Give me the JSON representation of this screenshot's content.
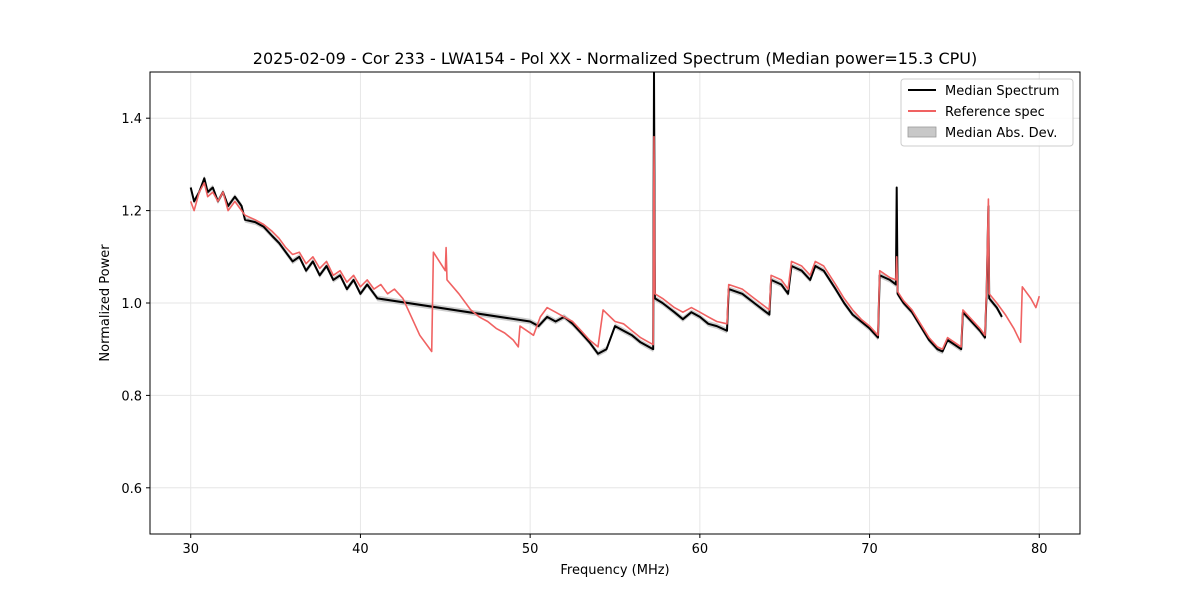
{
  "chart_data": {
    "type": "line",
    "title": "2025-02-09 - Cor 233 - LWA154 - Pol XX - Normalized Spectrum (Median power=15.3 CPU)",
    "xlabel": "Frequency (MHz)",
    "ylabel": "Normalized Power",
    "xlim": [
      27.6,
      82.4
    ],
    "ylim": [
      0.5,
      1.5
    ],
    "xticks": [
      30,
      40,
      50,
      60,
      70,
      80
    ],
    "yticks": [
      0.6,
      0.8,
      1.0,
      1.2,
      1.4
    ],
    "ytick_labels": [
      "0.6",
      "0.8",
      "1.0",
      "1.2",
      "1.4"
    ],
    "grid": true,
    "legend_position": "top-right",
    "series": [
      {
        "name": "Median Spectrum",
        "color": "#000000",
        "kind": "line",
        "points": [
          [
            30.0,
            1.25
          ],
          [
            30.2,
            1.22
          ],
          [
            30.5,
            1.24
          ],
          [
            30.8,
            1.27
          ],
          [
            31.0,
            1.24
          ],
          [
            31.3,
            1.25
          ],
          [
            31.6,
            1.22
          ],
          [
            31.9,
            1.24
          ],
          [
            32.2,
            1.21
          ],
          [
            32.6,
            1.23
          ],
          [
            33.0,
            1.21
          ],
          [
            33.2,
            1.18
          ],
          [
            33.8,
            1.175
          ],
          [
            34.3,
            1.165
          ],
          [
            34.8,
            1.145
          ],
          [
            35.2,
            1.13
          ],
          [
            35.6,
            1.11
          ],
          [
            36.0,
            1.09
          ],
          [
            36.4,
            1.1
          ],
          [
            36.8,
            1.07
          ],
          [
            37.2,
            1.09
          ],
          [
            37.6,
            1.06
          ],
          [
            38.0,
            1.08
          ],
          [
            38.4,
            1.05
          ],
          [
            38.8,
            1.06
          ],
          [
            39.2,
            1.03
          ],
          [
            39.6,
            1.05
          ],
          [
            40.0,
            1.02
          ],
          [
            40.4,
            1.04
          ],
          [
            40.8,
            1.02
          ],
          [
            41.0,
            1.01
          ],
          [
            50.0,
            0.96
          ],
          [
            50.5,
            0.95
          ],
          [
            51.0,
            0.97
          ],
          [
            51.5,
            0.96
          ],
          [
            52.0,
            0.97
          ],
          [
            52.5,
            0.955
          ],
          [
            53.0,
            0.935
          ],
          [
            53.5,
            0.915
          ],
          [
            54.0,
            0.89
          ],
          [
            54.5,
            0.9
          ],
          [
            55.0,
            0.95
          ],
          [
            55.5,
            0.94
          ],
          [
            56.0,
            0.93
          ],
          [
            56.5,
            0.915
          ],
          [
            57.0,
            0.905
          ],
          [
            57.25,
            0.9
          ],
          [
            57.3,
            1.5
          ],
          [
            57.35,
            1.01
          ],
          [
            57.8,
            1.0
          ],
          [
            58.5,
            0.98
          ],
          [
            59.0,
            0.965
          ],
          [
            59.5,
            0.98
          ],
          [
            60.0,
            0.97
          ],
          [
            60.5,
            0.955
          ],
          [
            61.0,
            0.95
          ],
          [
            61.6,
            0.94
          ],
          [
            61.7,
            1.03
          ],
          [
            62.5,
            1.02
          ],
          [
            63.2,
            1.0
          ],
          [
            64.1,
            0.975
          ],
          [
            64.2,
            1.05
          ],
          [
            64.8,
            1.04
          ],
          [
            65.2,
            1.02
          ],
          [
            65.4,
            1.08
          ],
          [
            66.0,
            1.07
          ],
          [
            66.5,
            1.05
          ],
          [
            66.8,
            1.08
          ],
          [
            67.3,
            1.07
          ],
          [
            68.0,
            1.03
          ],
          [
            68.5,
            1.0
          ],
          [
            69.0,
            0.975
          ],
          [
            69.5,
            0.96
          ],
          [
            70.0,
            0.945
          ],
          [
            70.5,
            0.925
          ],
          [
            70.6,
            1.06
          ],
          [
            71.2,
            1.05
          ],
          [
            71.55,
            1.04
          ],
          [
            71.6,
            1.25
          ],
          [
            71.65,
            1.02
          ],
          [
            72.0,
            1.0
          ],
          [
            72.5,
            0.98
          ],
          [
            73.0,
            0.95
          ],
          [
            73.5,
            0.92
          ],
          [
            74.0,
            0.9
          ],
          [
            74.3,
            0.895
          ],
          [
            74.6,
            0.92
          ],
          [
            75.0,
            0.91
          ],
          [
            75.4,
            0.9
          ],
          [
            75.5,
            0.98
          ],
          [
            76.0,
            0.96
          ],
          [
            76.5,
            0.94
          ],
          [
            76.8,
            0.925
          ],
          [
            76.9,
            1.03
          ],
          [
            77.0,
            1.21
          ],
          [
            77.05,
            1.01
          ],
          [
            77.5,
            0.99
          ],
          [
            77.8,
            0.97
          ]
        ]
      },
      {
        "name": "Reference spec",
        "color": "#f06262",
        "kind": "line",
        "points": [
          [
            30.0,
            1.22
          ],
          [
            30.2,
            1.2
          ],
          [
            30.5,
            1.24
          ],
          [
            30.8,
            1.26
          ],
          [
            31.0,
            1.23
          ],
          [
            31.3,
            1.24
          ],
          [
            31.6,
            1.22
          ],
          [
            31.9,
            1.24
          ],
          [
            32.2,
            1.2
          ],
          [
            32.6,
            1.22
          ],
          [
            33.0,
            1.2
          ],
          [
            33.2,
            1.19
          ],
          [
            33.8,
            1.18
          ],
          [
            34.3,
            1.17
          ],
          [
            34.8,
            1.155
          ],
          [
            35.2,
            1.14
          ],
          [
            35.6,
            1.12
          ],
          [
            36.0,
            1.105
          ],
          [
            36.4,
            1.11
          ],
          [
            36.8,
            1.085
          ],
          [
            37.2,
            1.1
          ],
          [
            37.6,
            1.075
          ],
          [
            38.0,
            1.09
          ],
          [
            38.4,
            1.06
          ],
          [
            38.8,
            1.07
          ],
          [
            39.2,
            1.045
          ],
          [
            39.6,
            1.06
          ],
          [
            40.0,
            1.035
          ],
          [
            40.4,
            1.05
          ],
          [
            40.8,
            1.03
          ],
          [
            41.2,
            1.04
          ],
          [
            41.6,
            1.02
          ],
          [
            42.0,
            1.03
          ],
          [
            42.5,
            1.01
          ],
          [
            43.0,
            0.97
          ],
          [
            43.5,
            0.93
          ],
          [
            44.2,
            0.895
          ],
          [
            44.3,
            1.11
          ],
          [
            45.0,
            1.07
          ],
          [
            45.05,
            1.12
          ],
          [
            45.1,
            1.05
          ],
          [
            45.8,
            1.02
          ],
          [
            46.5,
            0.985
          ],
          [
            47.0,
            0.97
          ],
          [
            47.5,
            0.96
          ],
          [
            48.0,
            0.945
          ],
          [
            48.5,
            0.935
          ],
          [
            49.0,
            0.92
          ],
          [
            49.3,
            0.905
          ],
          [
            49.4,
            0.95
          ],
          [
            49.8,
            0.94
          ],
          [
            50.2,
            0.93
          ],
          [
            50.6,
            0.97
          ],
          [
            51.0,
            0.99
          ],
          [
            51.5,
            0.98
          ],
          [
            52.0,
            0.97
          ],
          [
            52.5,
            0.96
          ],
          [
            53.0,
            0.94
          ],
          [
            53.5,
            0.92
          ],
          [
            54.0,
            0.905
          ],
          [
            54.3,
            0.985
          ],
          [
            55.0,
            0.96
          ],
          [
            55.5,
            0.955
          ],
          [
            56.0,
            0.94
          ],
          [
            56.5,
            0.925
          ],
          [
            57.0,
            0.915
          ],
          [
            57.25,
            0.91
          ],
          [
            57.3,
            1.36
          ],
          [
            57.35,
            1.02
          ],
          [
            57.8,
            1.01
          ],
          [
            58.5,
            0.99
          ],
          [
            59.0,
            0.98
          ],
          [
            59.5,
            0.99
          ],
          [
            60.0,
            0.98
          ],
          [
            60.5,
            0.97
          ],
          [
            61.0,
            0.96
          ],
          [
            61.6,
            0.955
          ],
          [
            61.7,
            1.04
          ],
          [
            62.5,
            1.03
          ],
          [
            63.2,
            1.01
          ],
          [
            64.1,
            0.985
          ],
          [
            64.2,
            1.06
          ],
          [
            64.8,
            1.05
          ],
          [
            65.2,
            1.03
          ],
          [
            65.4,
            1.09
          ],
          [
            66.0,
            1.08
          ],
          [
            66.5,
            1.06
          ],
          [
            66.8,
            1.09
          ],
          [
            67.3,
            1.08
          ],
          [
            68.0,
            1.04
          ],
          [
            68.5,
            1.01
          ],
          [
            69.0,
            0.985
          ],
          [
            69.5,
            0.965
          ],
          [
            70.0,
            0.95
          ],
          [
            70.5,
            0.93
          ],
          [
            70.6,
            1.07
          ],
          [
            71.2,
            1.055
          ],
          [
            71.55,
            1.05
          ],
          [
            71.6,
            1.1
          ],
          [
            71.65,
            1.025
          ],
          [
            72.0,
            1.005
          ],
          [
            72.5,
            0.985
          ],
          [
            73.0,
            0.955
          ],
          [
            73.5,
            0.925
          ],
          [
            74.0,
            0.905
          ],
          [
            74.3,
            0.9
          ],
          [
            74.6,
            0.925
          ],
          [
            75.0,
            0.915
          ],
          [
            75.4,
            0.905
          ],
          [
            75.5,
            0.985
          ],
          [
            76.0,
            0.965
          ],
          [
            76.5,
            0.945
          ],
          [
            76.8,
            0.93
          ],
          [
            76.9,
            1.04
          ],
          [
            77.0,
            1.225
          ],
          [
            77.05,
            1.02
          ],
          [
            77.5,
            1.0
          ],
          [
            78.0,
            0.975
          ],
          [
            78.5,
            0.945
          ],
          [
            78.9,
            0.915
          ],
          [
            79.0,
            1.035
          ],
          [
            79.5,
            1.01
          ],
          [
            79.8,
            0.99
          ],
          [
            80.0,
            1.015
          ]
        ]
      }
    ],
    "legend": [
      {
        "label": "Median Spectrum",
        "kind": "line",
        "color": "#000000"
      },
      {
        "label": "Reference spec",
        "kind": "line",
        "color": "#f06262"
      },
      {
        "label": "Median Abs. Dev.",
        "kind": "patch",
        "color": "#c8c8c8"
      }
    ]
  }
}
